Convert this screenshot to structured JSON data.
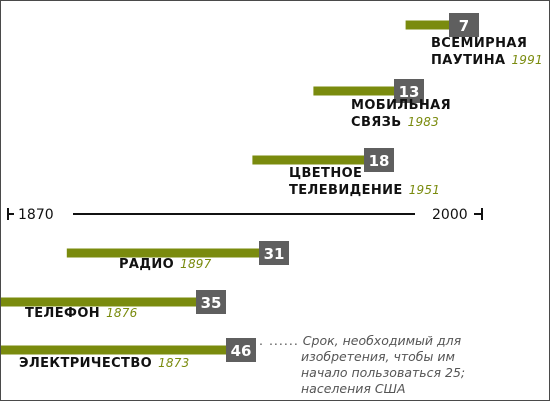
{
  "colors": {
    "bar": "#7a8b0e",
    "value_box": "#5f5f5f",
    "value_text": "#ffffff",
    "year": "#7a8b0e",
    "axis": "#111111",
    "note": "#555555"
  },
  "chart_data": {
    "type": "bar",
    "orientation": "horizontal",
    "title": "",
    "axis": {
      "start_label": "1870",
      "end_label": "2000",
      "range": [
        1870,
        2000
      ]
    },
    "items": [
      {
        "name": "ВСЕМИРНАЯ ПАУТИНА",
        "name_lines": [
          "ВСЕМИРНАЯ",
          "ПАУТИНА"
        ],
        "year": 1991,
        "year_label": "1991",
        "value": 7,
        "value_label": "7"
      },
      {
        "name": "МОБИЛЬНАЯ СВЯЗЬ",
        "name_lines": [
          "МОБИЛЬНАЯ",
          "СВЯЗЬ"
        ],
        "year": 1983,
        "year_label": "1983",
        "value": 13,
        "value_label": "13"
      },
      {
        "name": "ЦВЕТНОЕ ТЕЛЕВИДЕНИЕ",
        "name_lines": [
          "ЦВЕТНОЕ",
          "ТЕЛЕВИДЕНИЕ"
        ],
        "year": 1951,
        "year_label": "1951",
        "value": 18,
        "value_label": "18"
      },
      {
        "name": "РАДИО",
        "name_lines": [
          "РАДИО"
        ],
        "year": 1897,
        "year_label": "1897",
        "value": 31,
        "value_label": "31"
      },
      {
        "name": "ТЕЛЕФОН",
        "name_lines": [
          "ТЕЛЕФОН"
        ],
        "year": 1876,
        "year_label": "1876",
        "value": 35,
        "value_label": "35"
      },
      {
        "name": "ЭЛЕКТРИЧЕСТВО",
        "name_lines": [
          "ЭЛЕКТРИЧЕСТВО"
        ],
        "year": 1873,
        "year_label": "1873",
        "value": 46,
        "value_label": "46"
      }
    ],
    "note": {
      "dots": ". ......",
      "lines": [
        "Срок, необходимый для",
        "изобретения, чтобы им",
        "начало пользоваться 25;",
        "населения США"
      ]
    }
  }
}
